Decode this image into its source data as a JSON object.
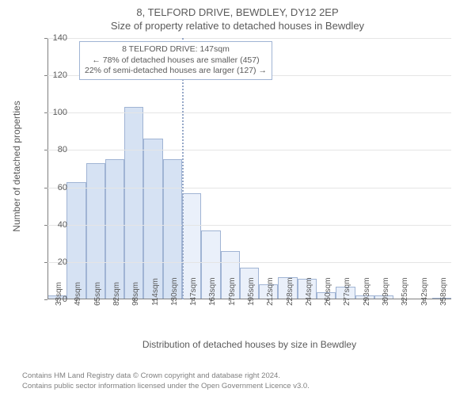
{
  "titles": {
    "address": "8, TELFORD DRIVE, BEWDLEY, DY12 2EP",
    "subtitle": "Size of property relative to detached houses in Bewdley"
  },
  "chart": {
    "type": "histogram",
    "ylabel": "Number of detached properties",
    "xlabel": "Distribution of detached houses by size in Bewdley",
    "ylim": [
      0,
      140
    ],
    "ytick_step": 20,
    "categories": [
      "33sqm",
      "49sqm",
      "65sqm",
      "82sqm",
      "98sqm",
      "114sqm",
      "130sqm",
      "147sqm",
      "163sqm",
      "179sqm",
      "195sqm",
      "212sqm",
      "228sqm",
      "244sqm",
      "260sqm",
      "277sqm",
      "293sqm",
      "309sqm",
      "325sqm",
      "342sqm",
      "358sqm"
    ],
    "values": [
      2,
      63,
      73,
      75,
      103,
      86,
      75,
      57,
      37,
      26,
      17,
      8,
      12,
      11,
      4,
      7,
      2,
      2,
      0,
      0,
      1
    ],
    "highlight_index": 7,
    "bar_color_left": "#d6e2f3",
    "bar_color_right": "#eaf0fa",
    "bar_border": "#a0b4d4",
    "grid_color": "#e5e5e5",
    "background_color": "#ffffff",
    "vline_color": "#96a8c8",
    "title_fontsize": 13,
    "label_fontsize": 12,
    "tick_fontsize": 11
  },
  "info_box": {
    "line1": "8 TELFORD DRIVE: 147sqm",
    "line2": "← 78% of detached houses are smaller (457)",
    "line3": "22% of semi-detached houses are larger (127) →",
    "border_color": "#a0b4d4"
  },
  "footer": {
    "line1": "Contains HM Land Registry data © Crown copyright and database right 2024.",
    "line2": "Contains public sector information licensed under the Open Government Licence v3.0."
  }
}
